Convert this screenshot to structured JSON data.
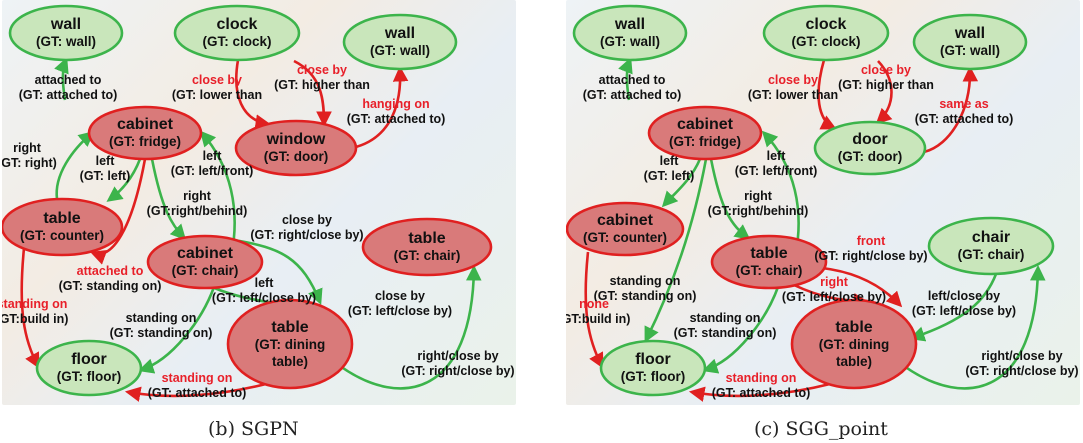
{
  "colors": {
    "green_fill": "#c9e6bb",
    "green_stroke": "#3cb44b",
    "red_fill": "#d97a7a",
    "red_stroke": "#e02020",
    "wrong_text": "#e8202a"
  },
  "panels": [
    {
      "id": "b",
      "caption": "(b)  SGPN",
      "nodes": [
        {
          "id": "wall1",
          "l1": "wall",
          "l2": "(GT: wall)",
          "status": "correct"
        },
        {
          "id": "clock",
          "l1": "clock",
          "l2": "(GT: clock)",
          "status": "correct"
        },
        {
          "id": "wall2",
          "l1": "wall",
          "l2": "(GT: wall)",
          "status": "correct"
        },
        {
          "id": "cabinet1",
          "l1": "cabinet",
          "l2": "(GT: fridge)",
          "status": "wrong"
        },
        {
          "id": "window",
          "l1": "window",
          "l2": "(GT: door)",
          "status": "wrong"
        },
        {
          "id": "table1",
          "l1": "table",
          "l2": "(GT: counter)",
          "status": "wrong"
        },
        {
          "id": "cabinet2",
          "l1": "cabinet",
          "l2": "(GT: chair)",
          "status": "wrong"
        },
        {
          "id": "table2",
          "l1": "table",
          "l2": "(GT: chair)",
          "status": "wrong"
        },
        {
          "id": "floor",
          "l1": "floor",
          "l2": "(GT: floor)",
          "status": "correct"
        },
        {
          "id": "table3",
          "l1": "table",
          "l2": "(GT: dining",
          "l3": "table)",
          "status": "wrong"
        }
      ],
      "edges": [
        {
          "l1": "attached to",
          "l2": "(GT: attached to)",
          "status": "correct"
        },
        {
          "l1": "close by",
          "l2": "(GT: lower than",
          "status": "wrong"
        },
        {
          "l1": "close by",
          "l2": "(GT: higher than",
          "status": "wrong"
        },
        {
          "l1": "hanging on",
          "l2": "(GT: attached to)",
          "status": "wrong"
        },
        {
          "l1": "right",
          "l2": "(GT: right)",
          "status": "correct"
        },
        {
          "l1": "left",
          "l2": "(GT: left)",
          "status": "correct"
        },
        {
          "l1": "left",
          "l2": "(GT: left/front)",
          "status": "correct"
        },
        {
          "l1": "right",
          "l2": "(GT:right/behind)",
          "status": "correct"
        },
        {
          "l1": "attached to",
          "l2": "(GT: standing on)",
          "status": "wrong"
        },
        {
          "l1": "standing on",
          "l2": "(GT:build in)",
          "status": "wrong"
        },
        {
          "l1": "close by",
          "l2": "(GT: right/close by)",
          "status": "correct"
        },
        {
          "l1": "left",
          "l2": "(GT: left/close by)",
          "status": "correct"
        },
        {
          "l1": "close by",
          "l2": "(GT: left/close by)",
          "status": "correct"
        },
        {
          "l1": "standing on",
          "l2": "(GT: standing on)",
          "status": "correct"
        },
        {
          "l1": "standing on",
          "l2": "(GT: attached to)",
          "status": "wrong"
        },
        {
          "l1": "right/close by",
          "l2": "(GT: right/close by)",
          "status": "correct"
        }
      ]
    },
    {
      "id": "c",
      "caption": "(c)  SGG_point",
      "nodes": [
        {
          "id": "wall1",
          "l1": "wall",
          "l2": "(GT: wall)",
          "status": "correct"
        },
        {
          "id": "clock",
          "l1": "clock",
          "l2": "(GT: clock)",
          "status": "correct"
        },
        {
          "id": "wall2",
          "l1": "wall",
          "l2": "(GT: wall)",
          "status": "correct"
        },
        {
          "id": "cabinet1",
          "l1": "cabinet",
          "l2": "(GT: fridge)",
          "status": "wrong"
        },
        {
          "id": "door",
          "l1": "door",
          "l2": "(GT: door)",
          "status": "correct"
        },
        {
          "id": "cabinet2",
          "l1": "cabinet",
          "l2": "(GT: counter)",
          "status": "wrong"
        },
        {
          "id": "table1",
          "l1": "table",
          "l2": "(GT: chair)",
          "status": "wrong"
        },
        {
          "id": "chair",
          "l1": "chair",
          "l2": "(GT: chair)",
          "status": "correct"
        },
        {
          "id": "floor",
          "l1": "floor",
          "l2": "(GT: floor)",
          "status": "correct"
        },
        {
          "id": "table2",
          "l1": "table",
          "l2": "(GT: dining",
          "l3": "table)",
          "status": "wrong"
        }
      ],
      "edges": [
        {
          "l1": "attached to",
          "l2": "(GT: attached to)",
          "status": "correct"
        },
        {
          "l1": "close by",
          "l2": "(GT: lower than",
          "status": "wrong"
        },
        {
          "l1": "close by",
          "l2": "(GT: higher than",
          "status": "wrong"
        },
        {
          "l1": "same as",
          "l2": "(GT: attached to)",
          "status": "wrong"
        },
        {
          "l1": "left",
          "l2": "(GT: left)",
          "status": "correct"
        },
        {
          "l1": "left",
          "l2": "(GT: left/front)",
          "status": "correct"
        },
        {
          "l1": "right",
          "l2": "(GT:right/behind)",
          "status": "correct"
        },
        {
          "l1": "front",
          "l2": "(GT: right/close by)",
          "status": "wrong"
        },
        {
          "l1": "right",
          "l2": "(GT: left/close by)",
          "status": "wrong"
        },
        {
          "l1": "standing on",
          "l2": "(GT: standing on)",
          "status": "correct"
        },
        {
          "l1": "none",
          "l2": "(GT:build in)",
          "status": "wrong"
        },
        {
          "l1": "standing on",
          "l2": "(GT: standing on)",
          "status": "correct"
        },
        {
          "l1": "left/close by",
          "l2": "(GT: left/close by)",
          "status": "correct"
        },
        {
          "l1": "standing on",
          "l2": "(GT: attached to)",
          "status": "wrong"
        },
        {
          "l1": "right/close by",
          "l2": "(GT: right/close by)",
          "status": "correct"
        }
      ]
    }
  ]
}
